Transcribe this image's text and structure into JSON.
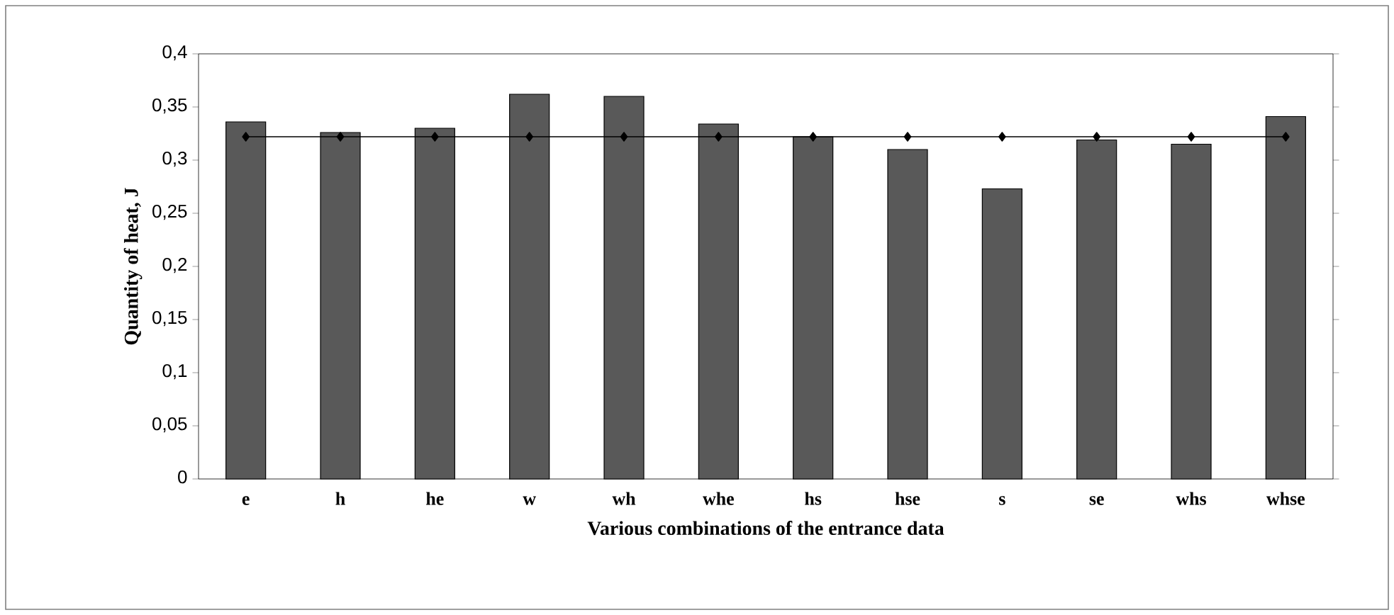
{
  "chart_data": {
    "type": "bar",
    "xlabel": "Various combinations of the entrance data",
    "ylabel": "Quantity of heat, J",
    "categories": [
      "e",
      "h",
      "he",
      "w",
      "wh",
      "whe",
      "hs",
      "hse",
      "s",
      "se",
      "whs",
      "whse"
    ],
    "series": [
      {
        "color": "#595959",
        "values": [
          0.336,
          0.326,
          0.33,
          0.362,
          0.36,
          0.334,
          0.322,
          0.31,
          0.273,
          0.319,
          0.315,
          0.341
        ]
      },
      {
        "type": "line",
        "color": "#000000",
        "marker": "diamond",
        "values": [
          0.322,
          0.322,
          0.322,
          0.322,
          0.322,
          0.322,
          0.322,
          0.322,
          0.322,
          0.322,
          0.322,
          0.322
        ]
      }
    ],
    "ylim": [
      0,
      0.4
    ],
    "yticks": [
      0,
      {
        "value": 0.05,
        "label": "0,05"
      },
      {
        "value": 0.1,
        "label": "0,1"
      },
      {
        "value": 0.15,
        "label": "0,15"
      },
      {
        "value": 0.2,
        "label": "0,2"
      },
      {
        "value": 0.25,
        "label": "0,25"
      },
      {
        "value": 0.3,
        "label": "0,3"
      },
      {
        "value": 0.35,
        "label": "0,35"
      },
      {
        "value": 0.4,
        "label": "0,4"
      }
    ]
  }
}
